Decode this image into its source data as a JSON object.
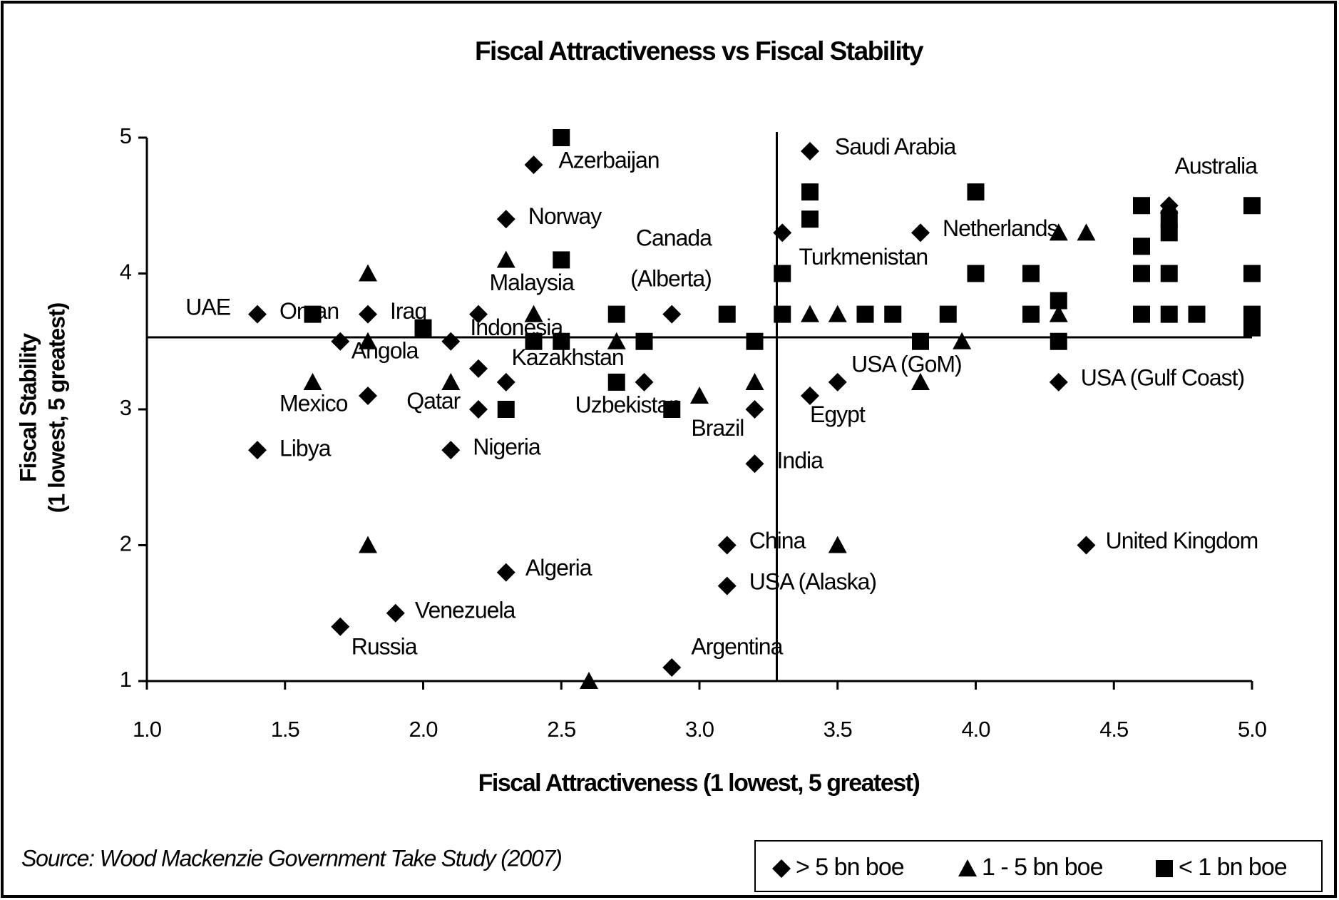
{
  "chart_data": {
    "type": "scatter",
    "title": "Fiscal Attractiveness vs Fiscal Stability",
    "xlabel": "Fiscal Attractiveness (1 lowest, 5 greatest)",
    "ylabel": [
      "Fiscal Stability",
      "(1 lowest, 5 greatest)"
    ],
    "source": "Source: Wood Mackenzie Government Take Study (2007)",
    "xlim": [
      1,
      5
    ],
    "ylim": [
      1,
      5
    ],
    "xticks": [
      {
        "value": 1,
        "label": "1.0"
      },
      1.5,
      {
        "value": 2,
        "label": "2.0"
      },
      2.5,
      {
        "value": 3,
        "label": "3.0"
      },
      3.5,
      {
        "value": 4,
        "label": "4.0"
      },
      4.5,
      {
        "value": 5,
        "label": "5.0"
      }
    ],
    "yticks": [
      1,
      2,
      3,
      4,
      5
    ],
    "grid": false,
    "legend": "bottom-right",
    "reference_lines": {
      "x": 3.28,
      "y": 3.53
    },
    "series": [
      {
        "name": "> 5 bn boe",
        "marker": "diamond",
        "color": "#000000",
        "x": [
          1.4,
          1.7,
          1.8,
          1.8,
          1.4,
          2.1,
          2.2,
          2.2,
          2.2,
          2.3,
          2.1,
          2.4,
          2.3,
          2.3,
          1.9,
          1.7,
          2.9,
          2.9,
          2.8,
          3.2,
          3.2,
          3.1,
          3.1,
          3.4,
          3.3,
          3.4,
          3.5,
          3.8,
          4.3,
          4.4,
          4.7
        ],
        "y": [
          3.7,
          3.5,
          3.7,
          3.1,
          2.7,
          3.5,
          3.7,
          3.3,
          3.0,
          3.2,
          2.7,
          4.8,
          4.4,
          1.8,
          1.5,
          1.4,
          1.1,
          3.7,
          3.2,
          3.0,
          2.6,
          2.0,
          1.7,
          4.9,
          4.3,
          3.1,
          3.2,
          4.3,
          3.2,
          2.0,
          4.5
        ]
      },
      {
        "name": "1 - 5 bn boe",
        "marker": "triangle",
        "color": "#000000",
        "x": [
          1.6,
          1.8,
          1.8,
          1.8,
          2.1,
          2.3,
          2.4,
          2.6,
          2.7,
          3.0,
          3.2,
          3.4,
          3.5,
          3.5,
          3.8,
          3.95,
          4.3,
          4.4,
          4.3,
          4.7
        ],
        "y": [
          3.2,
          4.0,
          3.5,
          2.0,
          3.2,
          4.1,
          3.7,
          1.0,
          3.5,
          3.1,
          3.2,
          3.7,
          3.7,
          2.0,
          3.2,
          3.5,
          4.3,
          4.3,
          3.7,
          4.5
        ]
      },
      {
        "name": "< 1 bn boe",
        "marker": "square",
        "color": "#000000",
        "x": [
          2.5,
          1.6,
          2.0,
          2.3,
          2.4,
          2.5,
          2.5,
          2.7,
          2.7,
          2.8,
          2.9,
          3.1,
          3.2,
          3.3,
          3.3,
          3.4,
          3.4,
          3.6,
          3.7,
          3.9,
          3.8,
          4.0,
          4.0,
          4.2,
          4.2,
          4.3,
          4.3,
          4.6,
          4.6,
          4.6,
          4.6,
          4.7,
          4.7,
          4.7,
          4.7,
          4.8,
          5.0,
          5.0,
          5.0,
          5.0
        ],
        "y": [
          5.0,
          3.7,
          3.6,
          3.0,
          3.5,
          4.1,
          3.5,
          3.7,
          3.2,
          3.5,
          3.0,
          3.7,
          3.5,
          4.0,
          3.7,
          4.6,
          4.4,
          3.7,
          3.7,
          3.7,
          3.5,
          4.6,
          4.0,
          4.0,
          3.7,
          3.8,
          3.5,
          4.5,
          4.2,
          4.0,
          3.7,
          4.4,
          4.3,
          4.0,
          3.7,
          3.7,
          4.5,
          4.0,
          3.7,
          3.6
        ]
      }
    ],
    "annotations": [
      {
        "text": "Saudi Arabia",
        "x": 3.49,
        "y": 4.92
      },
      {
        "text": "Azerbaijan",
        "x": 2.49,
        "y": 4.82
      },
      {
        "text": "Australia",
        "x": 4.72,
        "y": 4.78
      },
      {
        "text": "Norway",
        "x": 2.38,
        "y": 4.41
      },
      {
        "text": "Canada",
        "x": 2.77,
        "y": 4.25
      },
      {
        "text": "(Alberta)",
        "x": 2.75,
        "y": 3.95
      },
      {
        "text": "Netherlands",
        "x": 3.88,
        "y": 4.32
      },
      {
        "text": "Turkmenistan",
        "x": 3.36,
        "y": 4.11
      },
      {
        "text": "Malaysia",
        "x": 2.24,
        "y": 3.92
      },
      {
        "text": "UAE",
        "x": 1.14,
        "y": 3.74
      },
      {
        "text": "Oman",
        "x": 1.48,
        "y": 3.71
      },
      {
        "text": "Iraq",
        "x": 1.88,
        "y": 3.71
      },
      {
        "text": "Indonesia",
        "x": 2.17,
        "y": 3.59
      },
      {
        "text": "Angola",
        "x": 1.74,
        "y": 3.42
      },
      {
        "text": "Kazakhstan",
        "x": 2.32,
        "y": 3.37
      },
      {
        "text": "USA (GoM)",
        "x": 3.55,
        "y": 3.32
      },
      {
        "text": "USA (Gulf Coast)",
        "x": 4.38,
        "y": 3.22
      },
      {
        "text": "Mexico",
        "x": 1.48,
        "y": 3.03
      },
      {
        "text": "Qatar",
        "x": 1.94,
        "y": 3.05
      },
      {
        "text": "Uzbekistan",
        "x": 2.55,
        "y": 3.02
      },
      {
        "text": "Egypt",
        "x": 3.4,
        "y": 2.95
      },
      {
        "text": "Brazil",
        "x": 2.97,
        "y": 2.85
      },
      {
        "text": "Libya",
        "x": 1.48,
        "y": 2.7
      },
      {
        "text": "Nigeria",
        "x": 2.18,
        "y": 2.71
      },
      {
        "text": "India",
        "x": 3.28,
        "y": 2.61
      },
      {
        "text": "China",
        "x": 3.18,
        "y": 2.02
      },
      {
        "text": "United Kingdom",
        "x": 4.47,
        "y": 2.02
      },
      {
        "text": "Algeria",
        "x": 2.37,
        "y": 1.82
      },
      {
        "text": "USA (Alaska)",
        "x": 3.18,
        "y": 1.72
      },
      {
        "text": "Venezuela",
        "x": 1.97,
        "y": 1.51
      },
      {
        "text": "Argentina",
        "x": 2.97,
        "y": 1.24
      },
      {
        "text": "Russia",
        "x": 1.74,
        "y": 1.24
      }
    ]
  }
}
